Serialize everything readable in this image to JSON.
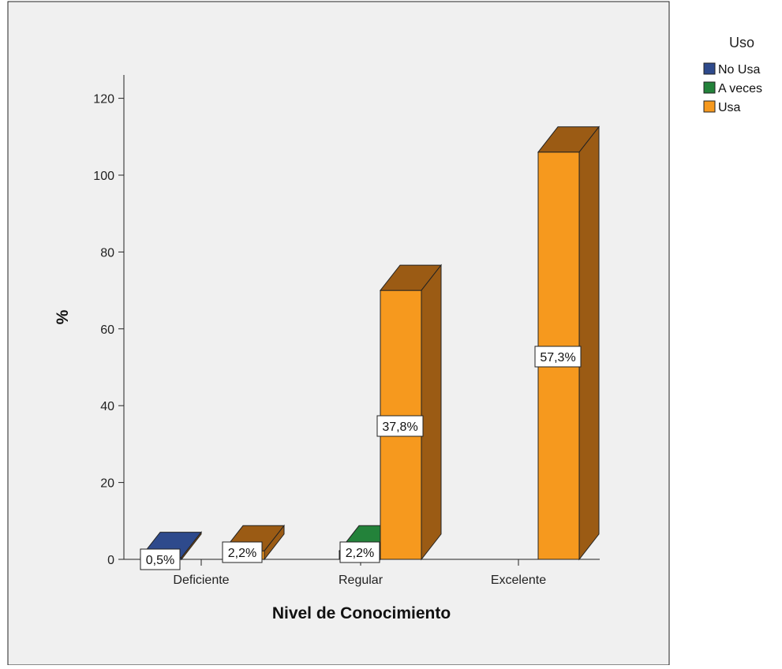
{
  "chart_data": {
    "type": "bar",
    "style": "3d-clustered",
    "title": "",
    "xlabel": "Nivel de Conocimiento",
    "ylabel": "%",
    "ylim": [
      0,
      125
    ],
    "yticks": [
      0,
      20,
      40,
      60,
      80,
      100,
      120
    ],
    "grid": false,
    "legend": {
      "title": "Uso",
      "position": "top-right"
    },
    "categories": [
      "Deficiente",
      "Regular",
      "Excelente"
    ],
    "series": [
      {
        "name": "No Usa",
        "color": "#2e4a8c",
        "values": [
          0.5,
          null,
          null
        ],
        "labels": [
          "0,5%",
          "",
          ""
        ]
      },
      {
        "name": "A veces",
        "color": "#23823a",
        "values": [
          null,
          2.2,
          null
        ],
        "labels": [
          "",
          "2,2%",
          ""
        ]
      },
      {
        "name": "Usa",
        "color": "#f6991e",
        "values": [
          2.2,
          70,
          106
        ],
        "labels": [
          "2,2%",
          "37,8%",
          "57,3%"
        ]
      }
    ],
    "background": "#f0f0f0",
    "side_color": "#9b5b14"
  }
}
